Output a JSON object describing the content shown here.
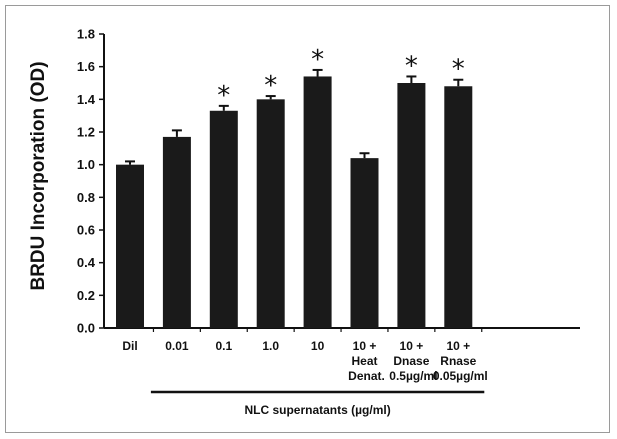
{
  "chart_data": {
    "type": "bar",
    "title": "",
    "ylabel": "BRDU Incorporation  (OD)",
    "xlabel": "NLC supernatants (µg/ml)",
    "ylim": [
      0.0,
      1.8
    ],
    "yticks": [
      "0.0",
      "0.2",
      "0.4",
      "0.6",
      "0.8",
      "1.0",
      "1.2",
      "1.4",
      "1.6",
      "1.8"
    ],
    "grid": false,
    "bar_color": "#1a1a1a",
    "categories": [
      [
        "Dil"
      ],
      [
        "0.01"
      ],
      [
        "0.1"
      ],
      [
        "1.0"
      ],
      [
        "10"
      ],
      [
        "10 +",
        "Heat",
        "Denat."
      ],
      [
        "10 +",
        "Dnase",
        "0.5µg/ml"
      ],
      [
        "10 +",
        "Rnase",
        "0.05µg/ml"
      ]
    ],
    "values": [
      1.0,
      1.17,
      1.33,
      1.4,
      1.54,
      1.04,
      1.5,
      1.48
    ],
    "errors": [
      0.02,
      0.04,
      0.03,
      0.02,
      0.04,
      0.03,
      0.04,
      0.04
    ],
    "significance": [
      "",
      "",
      "*",
      "*",
      "*",
      "",
      "*",
      "*"
    ]
  }
}
